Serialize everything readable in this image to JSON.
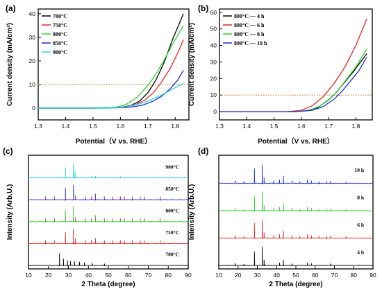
{
  "chart_data": [
    {
      "panel": "(a)",
      "type": "line",
      "xlabel": "Potential（V vs. RHE）",
      "ylabel": "Current density (mA/cm²)",
      "xlim": [
        1.3,
        1.85
      ],
      "ylim": [
        -5,
        42
      ],
      "xticks": [
        "1.3",
        "1.4",
        "1.5",
        "1.6",
        "1.7",
        "1.8"
      ],
      "yticks": [
        "0",
        "10",
        "20",
        "30",
        "40"
      ],
      "reference_line": {
        "y": 10,
        "color": "#c87533",
        "style": "dotted"
      },
      "legend_position": "top-left",
      "series": [
        {
          "name": "700°C",
          "color": "#000000",
          "x": [
            1.3,
            1.5,
            1.6,
            1.64,
            1.67,
            1.7,
            1.73,
            1.76,
            1.79,
            1.83
          ],
          "y": [
            0,
            0,
            0.3,
            1.2,
            3,
            6.5,
            12,
            19.5,
            29,
            40
          ]
        },
        {
          "name": "750°C",
          "color": "#e8231e",
          "x": [
            1.3,
            1.5,
            1.6,
            1.65,
            1.69,
            1.72,
            1.75,
            1.78,
            1.81,
            1.83
          ],
          "y": [
            0,
            0,
            0.3,
            1.2,
            3.5,
            6.5,
            11,
            16.5,
            23.5,
            29
          ]
        },
        {
          "name": "800°C",
          "color": "#2ad12a",
          "x": [
            1.3,
            1.5,
            1.58,
            1.62,
            1.66,
            1.7,
            1.73,
            1.76,
            1.79,
            1.83
          ],
          "y": [
            0,
            0,
            0.3,
            1.5,
            4.5,
            9.5,
            14.5,
            20.5,
            27,
            35
          ]
        },
        {
          "name": "850°C",
          "color": "#1c2ad6",
          "x": [
            1.3,
            1.55,
            1.63,
            1.68,
            1.72,
            1.75,
            1.78,
            1.81,
            1.83
          ],
          "y": [
            0,
            0,
            0.3,
            1.2,
            3,
            5,
            8,
            12,
            16
          ]
        },
        {
          "name": "900°C",
          "color": "#22d6de",
          "x": [
            1.3,
            1.55,
            1.62,
            1.67,
            1.71,
            1.75,
            1.79,
            1.83
          ],
          "y": [
            0,
            0,
            0.5,
            1.8,
            3.5,
            5.5,
            8,
            10.5
          ]
        }
      ]
    },
    {
      "panel": "(b)",
      "type": "line",
      "xlabel": "Potential（V vs. RHE）",
      "ylabel": "Current density (mA/cm²)",
      "xlim": [
        1.3,
        1.86
      ],
      "ylim": [
        -5,
        62
      ],
      "xticks": [
        "1.3",
        "1.4",
        "1.5",
        "1.6",
        "1.7",
        "1.8"
      ],
      "yticks": [
        "0",
        "10",
        "20",
        "30",
        "40",
        "50",
        "60"
      ],
      "reference_line": {
        "y": 10,
        "color": "#c87533",
        "style": "dotted"
      },
      "legend_position": "top-left",
      "series": [
        {
          "name": "800°C — 4 h",
          "color": "#000000",
          "x": [
            1.3,
            1.55,
            1.62,
            1.66,
            1.7,
            1.73,
            1.76,
            1.79,
            1.84
          ],
          "y": [
            0,
            0,
            0.5,
            2.5,
            7,
            12,
            18,
            24,
            35
          ]
        },
        {
          "name": "800°C — 6 h",
          "color": "#e8231e",
          "x": [
            1.3,
            1.55,
            1.6,
            1.64,
            1.68,
            1.72,
            1.76,
            1.8,
            1.84
          ],
          "y": [
            0,
            0,
            0.8,
            3.5,
            9,
            17,
            27,
            40,
            56
          ]
        },
        {
          "name": "800°C — 8 h",
          "color": "#2ad12a",
          "x": [
            1.3,
            1.57,
            1.63,
            1.67,
            1.71,
            1.74,
            1.77,
            1.8,
            1.84
          ],
          "y": [
            0,
            0,
            0.8,
            3.5,
            8.5,
            14,
            20.5,
            27,
            38
          ]
        },
        {
          "name": "800°C — 10 h",
          "color": "#1c2ad6",
          "x": [
            1.3,
            1.58,
            1.64,
            1.68,
            1.72,
            1.75,
            1.78,
            1.81,
            1.84
          ],
          "y": [
            0,
            0,
            0.8,
            3,
            7.5,
            12.5,
            18.5,
            24.5,
            33
          ]
        }
      ]
    },
    {
      "panel": "(c)",
      "type": "line",
      "xlabel": "2 Theta (degree)",
      "ylabel": "Intensity (Arb.U.)",
      "xlim": [
        10,
        90
      ],
      "xticks": [
        "10",
        "20",
        "30",
        "40",
        "50",
        "60",
        "70",
        "80",
        "90"
      ],
      "ref_marks_color": "#d63a8c",
      "series": [
        {
          "name": "700°C",
          "color": "#000000",
          "peaks": [
            [
              25.5,
              0.8
            ],
            [
              27.5,
              0.45
            ],
            [
              29.5,
              0.35
            ],
            [
              31,
              0.3
            ],
            [
              33,
              0.3
            ],
            [
              35.5,
              0.25
            ],
            [
              38,
              0.2
            ],
            [
              42,
              0.15
            ],
            [
              48,
              0.12
            ]
          ]
        },
        {
          "name": "750°C",
          "color": "#e8231e",
          "peaks": [
            [
              18.5,
              0.12
            ],
            [
              23,
              0.1
            ],
            [
              28.5,
              0.75
            ],
            [
              32.5,
              1.0
            ],
            [
              33.5,
              0.35
            ],
            [
              38.5,
              0.15
            ],
            [
              41.5,
              0.2
            ],
            [
              43.5,
              0.35
            ],
            [
              48,
              0.15
            ],
            [
              52,
              0.12
            ],
            [
              56,
              0.2
            ],
            [
              58,
              0.15
            ],
            [
              62,
              0.1
            ],
            [
              66,
              0.1
            ],
            [
              68,
              0.12
            ],
            [
              76,
              0.08
            ]
          ]
        },
        {
          "name": "800°C",
          "color": "#2ad12a",
          "peaks": [
            [
              18.5,
              0.15
            ],
            [
              23,
              0.12
            ],
            [
              28.5,
              0.8
            ],
            [
              32.5,
              1.0
            ],
            [
              33.5,
              0.3
            ],
            [
              38.5,
              0.15
            ],
            [
              41.5,
              0.2
            ],
            [
              43.5,
              0.45
            ],
            [
              48,
              0.15
            ],
            [
              52,
              0.12
            ],
            [
              56,
              0.22
            ],
            [
              58,
              0.18
            ],
            [
              62,
              0.1
            ],
            [
              66,
              0.12
            ],
            [
              68,
              0.12
            ],
            [
              76,
              0.08
            ]
          ]
        },
        {
          "name": "850°C",
          "color": "#1c2ad6",
          "peaks": [
            [
              18.5,
              0.15
            ],
            [
              23,
              0.12
            ],
            [
              28.5,
              0.8
            ],
            [
              32.5,
              1.0
            ],
            [
              33.5,
              0.3
            ],
            [
              38.5,
              0.15
            ],
            [
              41.5,
              0.2
            ],
            [
              43.5,
              0.4
            ],
            [
              48,
              0.15
            ],
            [
              52,
              0.12
            ],
            [
              56,
              0.2
            ],
            [
              58,
              0.18
            ],
            [
              62,
              0.1
            ],
            [
              66,
              0.1
            ],
            [
              68,
              0.12
            ],
            [
              76,
              0.08
            ]
          ]
        },
        {
          "name": "900°C",
          "color": "#22d6de",
          "peaks": [
            [
              28.5,
              0.7
            ],
            [
              32.5,
              1.0
            ],
            [
              33.3,
              0.45
            ],
            [
              41.5,
              0.1
            ],
            [
              43.5,
              0.12
            ],
            [
              56,
              0.1
            ]
          ]
        }
      ]
    },
    {
      "panel": "(d)",
      "type": "line",
      "xlabel": "2 Theta (degree)",
      "ylabel": "Intensity (Arb.U.)",
      "xlim": [
        10,
        90
      ],
      "xticks": [
        "10",
        "20",
        "30",
        "40",
        "50",
        "60",
        "70",
        "80",
        "90"
      ],
      "series": [
        {
          "name": "4 h",
          "color": "#000000",
          "peaks": [
            [
              18.5,
              0.12
            ],
            [
              23,
              0.08
            ],
            [
              28.5,
              0.75
            ],
            [
              32.5,
              1.0
            ],
            [
              33.5,
              0.3
            ],
            [
              41.5,
              0.15
            ],
            [
              43.5,
              0.3
            ],
            [
              48,
              0.1
            ],
            [
              56,
              0.15
            ],
            [
              58,
              0.12
            ],
            [
              68,
              0.1
            ]
          ]
        },
        {
          "name": "6 h",
          "color": "#e8231e",
          "peaks": [
            [
              18.5,
              0.15
            ],
            [
              23,
              0.1
            ],
            [
              28.5,
              0.8
            ],
            [
              32.5,
              1.0
            ],
            [
              33.5,
              0.3
            ],
            [
              38.5,
              0.15
            ],
            [
              41.5,
              0.2
            ],
            [
              43.5,
              0.4
            ],
            [
              48,
              0.15
            ],
            [
              52,
              0.1
            ],
            [
              56,
              0.2
            ],
            [
              58,
              0.15
            ],
            [
              62,
              0.1
            ],
            [
              66,
              0.1
            ],
            [
              68,
              0.12
            ],
            [
              76,
              0.08
            ]
          ]
        },
        {
          "name": "8 h",
          "color": "#2ad12a",
          "peaks": [
            [
              18.5,
              0.15
            ],
            [
              23,
              0.1
            ],
            [
              28.5,
              0.8
            ],
            [
              32.5,
              1.0
            ],
            [
              33.5,
              0.3
            ],
            [
              38.5,
              0.15
            ],
            [
              41.5,
              0.2
            ],
            [
              43.5,
              0.4
            ],
            [
              48,
              0.15
            ],
            [
              52,
              0.1
            ],
            [
              56,
              0.2
            ],
            [
              58,
              0.15
            ],
            [
              62,
              0.1
            ],
            [
              66,
              0.1
            ],
            [
              68,
              0.12
            ],
            [
              76,
              0.08
            ]
          ]
        },
        {
          "name": "10 h",
          "color": "#1c2ad6",
          "peaks": [
            [
              18.5,
              0.15
            ],
            [
              23,
              0.1
            ],
            [
              28.5,
              0.8
            ],
            [
              32.5,
              1.0
            ],
            [
              33.5,
              0.3
            ],
            [
              38.5,
              0.15
            ],
            [
              41.5,
              0.2
            ],
            [
              43.5,
              0.4
            ],
            [
              48,
              0.15
            ],
            [
              52,
              0.1
            ],
            [
              56,
              0.2
            ],
            [
              58,
              0.15
            ],
            [
              62,
              0.1
            ],
            [
              66,
              0.1
            ],
            [
              68,
              0.12
            ],
            [
              76,
              0.08
            ]
          ]
        }
      ]
    }
  ]
}
